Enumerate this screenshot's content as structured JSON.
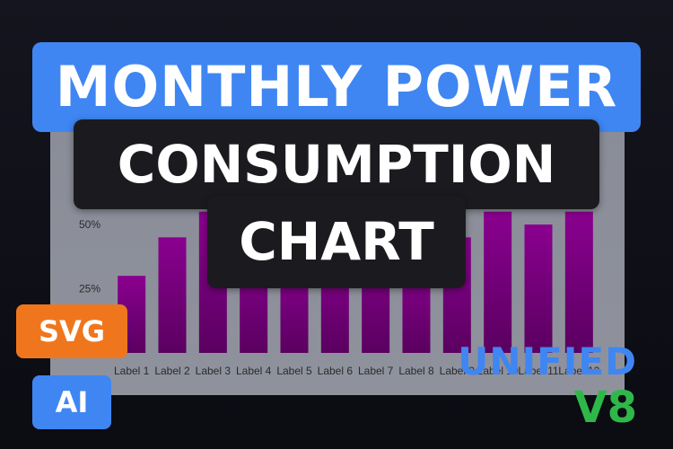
{
  "header": {
    "line1": "MONTHLY POWER",
    "line2": "CONSUMPTION",
    "line3": "CHART"
  },
  "badges": {
    "svg": "SVG",
    "ai": "AI"
  },
  "brand": {
    "line1": "UNIFIED",
    "line2": "V8"
  },
  "colors": {
    "bar": "#7a0080",
    "accent_blue": "#3f86f2",
    "accent_orange": "#f0761d",
    "accent_green": "#2fb84a",
    "panel": "#8c8f99"
  },
  "chart_data": {
    "type": "bar",
    "categories": [
      "Label 1",
      "Label 2",
      "Label 3",
      "Label 4",
      "Label 5",
      "Label 6",
      "Label 7",
      "Label 8",
      "Label 9",
      "Label 10",
      "Label 11",
      "Label 12"
    ],
    "values": [
      30,
      45,
      55,
      40,
      35,
      40,
      45,
      35,
      45,
      55,
      50,
      55
    ],
    "yticks": [
      "25%",
      "50%"
    ],
    "ytick_values": [
      25,
      50
    ],
    "ylim": [
      0,
      70
    ],
    "title": "",
    "xlabel": "",
    "ylabel": "",
    "grid": false
  }
}
